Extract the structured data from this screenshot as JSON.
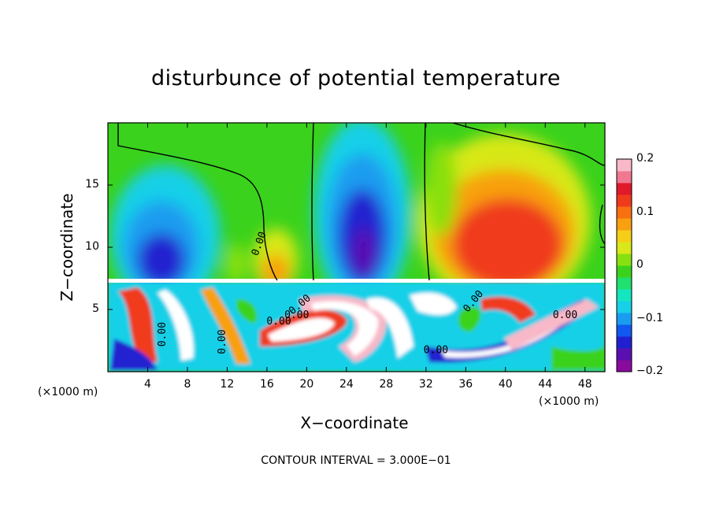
{
  "chart_data": {
    "type": "heatmap",
    "title": "disturbunce of potential temperature",
    "xlabel": "X−coordinate",
    "ylabel": "Z−coordinate",
    "x_unit_left": "(×1000 m)",
    "x_unit_right": "(×1000 m)",
    "footer": "CONTOUR INTERVAL = 3.000E−01",
    "xlim": [
      0,
      50
    ],
    "ylim": [
      0,
      20
    ],
    "x_ticks": [
      "4",
      "8",
      "12",
      "16",
      "20",
      "24",
      "28",
      "32",
      "36",
      "40",
      "44",
      "48"
    ],
    "y_ticks": [
      "5",
      "10",
      "15"
    ],
    "colorbar": {
      "range": [
        -0.2,
        0.2
      ],
      "tick_labels": [
        "0.2",
        "0.1",
        "0",
        "−0.1",
        "−0.2"
      ],
      "colors": [
        "#8a0a9e",
        "#5a10b0",
        "#2020d0",
        "#1058f0",
        "#1a9cf0",
        "#18d0e8",
        "#14e6c0",
        "#20e070",
        "#3ad21c",
        "#88e010",
        "#d8e818",
        "#f6ce18",
        "#f8a010",
        "#f87010",
        "#f03a1c",
        "#e01a2a",
        "#f07890",
        "#f8b8c8"
      ]
    },
    "contour_labels": [
      "0.00",
      "0.00",
      "0.00",
      "0.00",
      "0.00",
      "0.00",
      "0.00",
      "0.00",
      "0.00"
    ],
    "features": [
      {
        "x": 5.5,
        "z": 10.5,
        "value": -0.17
      },
      {
        "x": 17.5,
        "z": 9.0,
        "value": 0.1
      },
      {
        "x": 26.0,
        "z": 12.0,
        "value": -0.19
      },
      {
        "x": 40.5,
        "z": 11.0,
        "value": 0.13
      },
      {
        "x": 12.0,
        "z": 15.0,
        "value": 0.0
      }
    ]
  }
}
